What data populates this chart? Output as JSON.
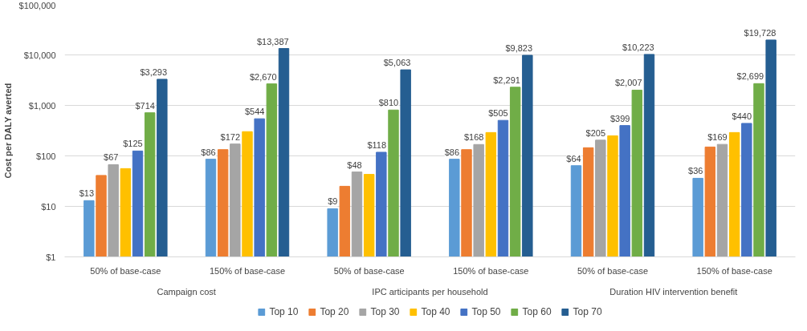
{
  "chart_data": {
    "type": "bar",
    "ylabel": "Cost per DALY averted",
    "categories": [
      "50% of base-case",
      "150% of base-case",
      "50% of base-case",
      "150% of base-case",
      "50% of base-case",
      "150% of base-case"
    ],
    "annotations": [
      "Campaign cost",
      "IPC articipants per household",
      "Duration HIV intervention benefit"
    ],
    "series": [
      {
        "name": "Top 10",
        "color": "#5b9bd5",
        "values": [
          13,
          86,
          9,
          86,
          64,
          36
        ],
        "value_labels": [
          "$13",
          "$86",
          "$9",
          "$86",
          "$64",
          "$36"
        ]
      },
      {
        "name": "Top 20",
        "color": "#ed7d31",
        "values": [
          41,
          133,
          25,
          133,
          145,
          150
        ],
        "value_labels": [
          null,
          null,
          null,
          null,
          null,
          null
        ]
      },
      {
        "name": "Top 30",
        "color": "#a5a5a5",
        "values": [
          67,
          172,
          48,
          168,
          205,
          169
        ],
        "value_labels": [
          "$67",
          "$172",
          "$48",
          "$168",
          "$205",
          "$169"
        ]
      },
      {
        "name": "Top 40",
        "color": "#ffc000",
        "values": [
          56,
          302,
          43,
          290,
          250,
          290
        ],
        "value_labels": [
          null,
          null,
          null,
          null,
          null,
          null
        ]
      },
      {
        "name": "Top 50",
        "color": "#4472c4",
        "values": [
          125,
          544,
          118,
          505,
          399,
          440
        ],
        "value_labels": [
          "$125",
          "$544",
          "$118",
          "$505",
          "$399",
          "$440"
        ]
      },
      {
        "name": "Top 60",
        "color": "#70ad47",
        "values": [
          714,
          2670,
          810,
          2291,
          2007,
          2699
        ],
        "value_labels": [
          "$714",
          "$2,670",
          "$810",
          "$2,291",
          "$2,007",
          "$2,699"
        ]
      },
      {
        "name": "Top 70",
        "color": "#255e91",
        "values": [
          3293,
          13387,
          5063,
          9823,
          10223,
          19728
        ],
        "value_labels": [
          "$3,293",
          "$13,387",
          "$5,063",
          "$9,823",
          "$10,223",
          "$19,728"
        ]
      }
    ],
    "log": "y",
    "ylim": [
      1,
      100000
    ],
    "yticks": [
      {
        "value": 1,
        "label": "$1"
      },
      {
        "value": 10,
        "label": "$10"
      },
      {
        "value": 100,
        "label": "$100"
      },
      {
        "value": 1000,
        "label": "$1,000"
      },
      {
        "value": 10000,
        "label": "$10,000"
      },
      {
        "value": 100000,
        "label": "$100,000"
      }
    ],
    "grid": "y",
    "legend": "bottom"
  }
}
